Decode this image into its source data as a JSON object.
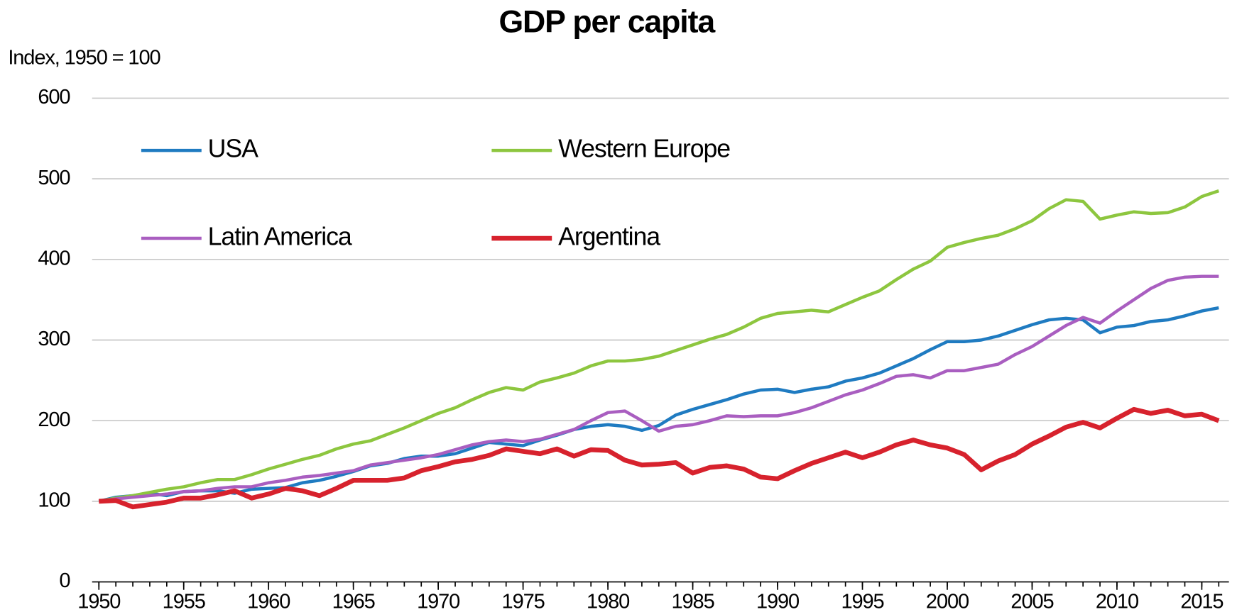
{
  "chart_data": {
    "type": "line",
    "title": "GDP per capita",
    "y_label": "Index, 1950 = 100",
    "x": [
      1950,
      1951,
      1952,
      1953,
      1954,
      1955,
      1956,
      1957,
      1958,
      1959,
      1960,
      1961,
      1962,
      1963,
      1964,
      1965,
      1966,
      1967,
      1968,
      1969,
      1970,
      1971,
      1972,
      1973,
      1974,
      1975,
      1976,
      1977,
      1978,
      1979,
      1980,
      1981,
      1982,
      1983,
      1984,
      1985,
      1986,
      1987,
      1988,
      1989,
      1990,
      1991,
      1992,
      1993,
      1994,
      1995,
      1996,
      1997,
      1998,
      1999,
      2000,
      2001,
      2002,
      2003,
      2004,
      2005,
      2006,
      2007,
      2008,
      2009,
      2010,
      2011,
      2012,
      2013,
      2014,
      2015,
      2016
    ],
    "series": [
      {
        "name": "USA",
        "color": "#1f7bc1",
        "values": [
          100,
          105,
          107,
          110,
          107,
          112,
          113,
          113,
          110,
          115,
          116,
          117,
          123,
          126,
          131,
          137,
          144,
          147,
          153,
          156,
          156,
          159,
          166,
          173,
          171,
          169,
          176,
          182,
          189,
          193,
          195,
          193,
          188,
          194,
          207,
          214,
          220,
          226,
          233,
          238,
          239,
          235,
          239,
          242,
          249,
          253,
          259,
          268,
          277,
          288,
          298,
          298,
          300,
          305,
          312,
          319,
          325,
          327,
          325,
          309,
          316,
          318,
          323,
          325,
          330,
          336,
          340
        ]
      },
      {
        "name": "Western Europe",
        "color": "#8dc63f",
        "values": [
          100,
          104,
          107,
          111,
          115,
          118,
          123,
          127,
          127,
          133,
          140,
          146,
          152,
          157,
          165,
          171,
          175,
          183,
          191,
          200,
          209,
          216,
          226,
          235,
          241,
          238,
          248,
          253,
          259,
          268,
          274,
          274,
          276,
          280,
          287,
          294,
          301,
          307,
          316,
          327,
          333,
          335,
          337,
          335,
          344,
          353,
          361,
          375,
          388,
          398,
          415,
          421,
          426,
          430,
          438,
          448,
          463,
          474,
          472,
          450,
          455,
          459,
          457,
          458,
          465,
          478,
          485
        ]
      },
      {
        "name": "Latin America",
        "color": "#a95ec0",
        "values": [
          100,
          103,
          105,
          107,
          109,
          112,
          113,
          116,
          118,
          118,
          123,
          126,
          130,
          132,
          135,
          138,
          145,
          148,
          151,
          154,
          158,
          164,
          170,
          174,
          176,
          174,
          177,
          183,
          189,
          200,
          210,
          212,
          200,
          187,
          193,
          195,
          200,
          206,
          205,
          206,
          206,
          210,
          216,
          224,
          232,
          238,
          246,
          255,
          257,
          253,
          262,
          262,
          266,
          270,
          282,
          292,
          305,
          318,
          328,
          321,
          336,
          350,
          364,
          374,
          378,
          379,
          379
        ]
      },
      {
        "name": "Argentina",
        "color": "#d7222d",
        "values": [
          100,
          101,
          93,
          96,
          99,
          104,
          104,
          108,
          113,
          104,
          109,
          116,
          113,
          107,
          116,
          126,
          126,
          126,
          129,
          138,
          143,
          149,
          152,
          157,
          165,
          162,
          159,
          165,
          156,
          164,
          163,
          151,
          145,
          146,
          148,
          135,
          142,
          144,
          140,
          130,
          128,
          138,
          147,
          154,
          161,
          154,
          161,
          170,
          176,
          170,
          166,
          158,
          139,
          150,
          158,
          171,
          181,
          192,
          198,
          191,
          203,
          214,
          209,
          213,
          206,
          208,
          200
        ]
      }
    ],
    "xlim": [
      1949.6,
      2016.6
    ],
    "xticks": [
      1950,
      1955,
      1960,
      1965,
      1970,
      1975,
      1980,
      1985,
      1990,
      1995,
      2000,
      2005,
      2010,
      2015
    ],
    "ylim": [
      0,
      600
    ],
    "yticks": [
      0,
      100,
      200,
      300,
      400,
      500,
      600
    ],
    "grid": true,
    "legend": "upper left"
  }
}
